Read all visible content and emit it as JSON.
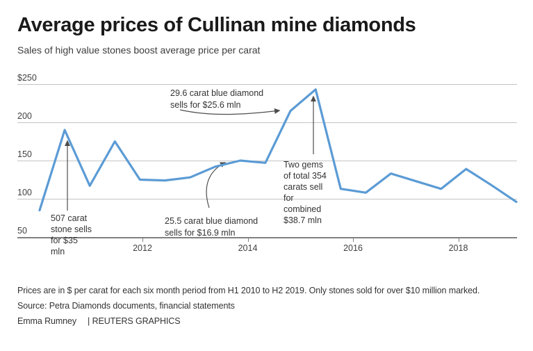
{
  "header": {
    "title": "Average prices of Cullinan mine diamonds",
    "subtitle": "Sales of high value stones boost average price per carat"
  },
  "chart_data": {
    "type": "line",
    "title": "Average prices of Cullinan mine diamonds",
    "subtitle": "Sales of high value stones boost average price per carat",
    "unit": "$ per carat",
    "x": [
      "H1 2010",
      "H2 2010",
      "H1 2011",
      "H2 2011",
      "H1 2012",
      "H2 2012",
      "H1 2013",
      "H2 2013",
      "H1 2014",
      "H2 2014",
      "H1 2015",
      "H2 2015",
      "H1 2016",
      "H2 2016",
      "H1 2017",
      "H2 2017",
      "H1 2018",
      "H2 2018",
      "H1 2019",
      "H2 2019"
    ],
    "values": [
      85,
      190,
      117,
      175,
      125,
      124,
      128,
      142,
      150,
      147,
      215,
      243,
      113,
      108,
      133,
      123,
      113,
      139,
      118,
      96
    ],
    "ylim": [
      50,
      250
    ],
    "y_tick_values": [
      250,
      200,
      150,
      100,
      50
    ],
    "y_tick_labels": [
      "$250",
      "200",
      "150",
      "100",
      "50"
    ],
    "x_tick_labels": [
      "2012",
      "2014",
      "2016",
      "2018"
    ],
    "grid": "horizontal",
    "legend": "none",
    "line_color": "#5b9bd5",
    "annotations": [
      {
        "text": "507 carat\nstone sells\nfor $35\nmln"
      },
      {
        "text": "29.6 carat blue diamond\nsells for $25.6 mln"
      },
      {
        "text": "25.5 carat blue diamond\nsells for $16.9 mln"
      },
      {
        "text": "Two gems\nof total 354\ncarats sell\nfor\ncombined\n$38.7 mln"
      }
    ]
  },
  "footer": {
    "note": "Prices are in $ per carat for each six month period from H1 2010 to H2 2019. Only stones sold for over $10 million marked.",
    "source": "Source: Petra Diamonds documents, financial statements",
    "byline": "Emma Rumney",
    "separator": "|",
    "credit": "REUTERS GRAPHICS"
  }
}
